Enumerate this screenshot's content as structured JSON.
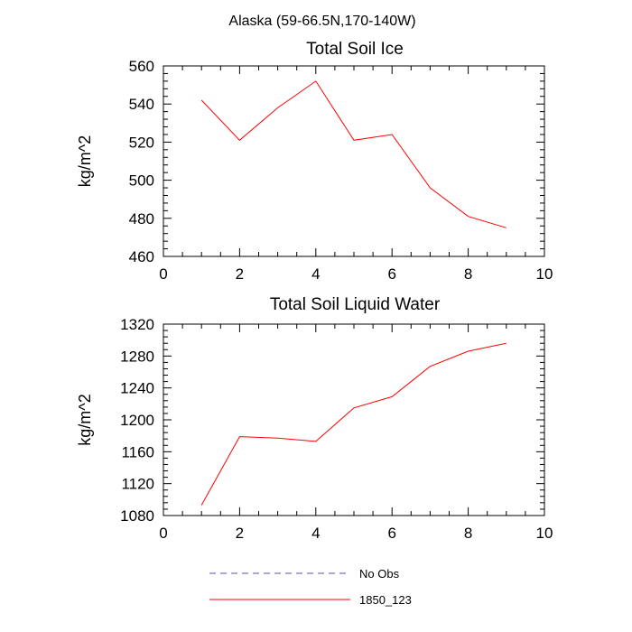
{
  "suptitle": "Alaska (59-66.5N,170-140W)",
  "colors": {
    "model": "#ff0000",
    "obs": "#5555aa",
    "axis": "#000000"
  },
  "legend": [
    {
      "label": "No Obs",
      "style": "dashed",
      "color": "#5555aa"
    },
    {
      "label": "1850_123",
      "style": "solid",
      "color": "#ff0000"
    }
  ],
  "chart_data": [
    {
      "type": "line",
      "title": "Total Soil Ice",
      "xlabel": "",
      "ylabel": "kg/m^2",
      "xlim": [
        0,
        10
      ],
      "ylim": [
        460,
        560
      ],
      "xticks": [
        0,
        2,
        4,
        6,
        8,
        10
      ],
      "yticks": [
        460,
        480,
        500,
        520,
        540,
        560
      ],
      "series": [
        {
          "name": "1850_123",
          "x": [
            1,
            2,
            3,
            4,
            5,
            6,
            7,
            8,
            9
          ],
          "y": [
            542,
            521,
            538,
            552,
            521,
            524,
            496,
            481,
            475
          ]
        }
      ]
    },
    {
      "type": "line",
      "title": "Total Soil Liquid Water",
      "xlabel": "",
      "ylabel": "kg/m^2",
      "xlim": [
        0,
        10
      ],
      "ylim": [
        1080,
        1320
      ],
      "xticks": [
        0,
        2,
        4,
        6,
        8,
        10
      ],
      "yticks": [
        1080,
        1120,
        1160,
        1200,
        1240,
        1280,
        1320
      ],
      "series": [
        {
          "name": "1850_123",
          "x": [
            1,
            2,
            3,
            4,
            5,
            6,
            7,
            8,
            9
          ],
          "y": [
            1093,
            1179,
            1177,
            1173,
            1215,
            1229,
            1267,
            1286,
            1296
          ]
        }
      ]
    }
  ]
}
